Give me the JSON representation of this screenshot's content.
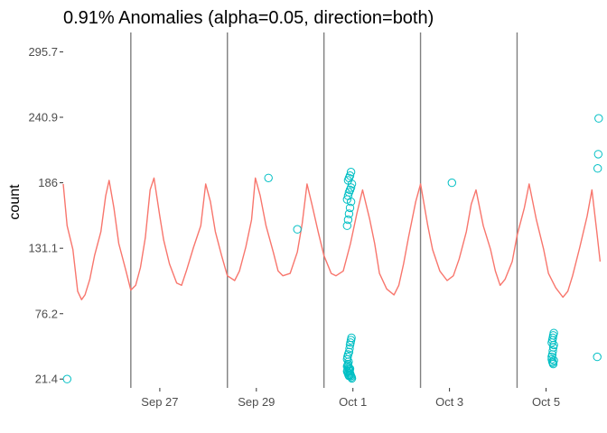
{
  "chart_data": {
    "type": "line",
    "title": "0.91% Anomalies (alpha=0.05, direction=both)",
    "xlabel": "",
    "ylabel": "count",
    "ylim": [
      14,
      312
    ],
    "y_ticks": [
      21.4,
      76.2,
      131.1,
      186,
      240.9,
      295.7
    ],
    "x_unit": "days since Sep 25 00:00",
    "xlim": [
      0,
      11.15
    ],
    "x_ticks": [
      {
        "label": "Sep 27",
        "x": 2
      },
      {
        "label": "Sep 29",
        "x": 4
      },
      {
        "label": "Oct  1",
        "x": 6
      },
      {
        "label": "Oct  3",
        "x": 8
      },
      {
        "label": "Oct  5",
        "x": 10
      }
    ],
    "vertical_lines": [
      1.4,
      3.4,
      5.4,
      7.4,
      9.4
    ],
    "grid": false,
    "series": [
      {
        "name": "count",
        "color": "#f8766d",
        "x": [
          0.0,
          0.08,
          0.2,
          0.3,
          0.38,
          0.45,
          0.55,
          0.65,
          0.78,
          0.88,
          0.95,
          1.05,
          1.15,
          1.3,
          1.4,
          1.5,
          1.6,
          1.7,
          1.8,
          1.88,
          2.0,
          2.08,
          2.2,
          2.35,
          2.45,
          2.55,
          2.7,
          2.85,
          2.95,
          3.05,
          3.15,
          3.28,
          3.4,
          3.55,
          3.65,
          3.78,
          3.9,
          3.98,
          4.08,
          4.2,
          4.35,
          4.45,
          4.55,
          4.7,
          4.85,
          4.95,
          5.05,
          5.15,
          5.28,
          5.4,
          5.55,
          5.65,
          5.8,
          5.95,
          6.08,
          6.2,
          6.35,
          6.45,
          6.55,
          6.7,
          6.85,
          6.95,
          7.05,
          7.15,
          7.3,
          7.4,
          7.55,
          7.65,
          7.8,
          7.95,
          8.08,
          8.2,
          8.35,
          8.45,
          8.55,
          8.7,
          8.85,
          8.95,
          9.05,
          9.15,
          9.3,
          9.4,
          9.55,
          9.65,
          9.8,
          9.95,
          10.05,
          10.2,
          10.35,
          10.45,
          10.55,
          10.7,
          10.85,
          10.95,
          11.05,
          11.12
        ],
        "y": [
          185,
          150,
          130,
          95,
          88,
          92,
          105,
          125,
          145,
          175,
          188,
          165,
          135,
          112,
          96,
          100,
          115,
          140,
          180,
          190,
          158,
          138,
          118,
          102,
          100,
          112,
          132,
          150,
          185,
          170,
          145,
          125,
          108,
          104,
          112,
          132,
          155,
          190,
          175,
          150,
          128,
          112,
          108,
          110,
          128,
          152,
          185,
          168,
          145,
          125,
          110,
          108,
          112,
          135,
          160,
          180,
          155,
          135,
          110,
          97,
          92,
          100,
          118,
          140,
          170,
          185,
          150,
          130,
          112,
          104,
          108,
          122,
          145,
          168,
          180,
          150,
          130,
          112,
          100,
          105,
          120,
          142,
          165,
          185,
          155,
          130,
          110,
          98,
          90,
          95,
          108,
          132,
          158,
          180,
          145,
          120
        ]
      }
    ],
    "anomalies": {
      "color": "#00bfc4",
      "x": [
        0.08,
        4.25,
        4.85,
        5.88,
        5.89,
        5.9,
        5.91,
        5.92,
        5.93,
        5.94,
        5.88,
        5.89,
        5.9,
        5.91,
        5.92,
        5.93,
        5.94,
        5.95,
        5.96,
        5.97,
        5.98,
        5.88,
        5.89,
        5.9,
        5.91,
        5.92,
        5.93,
        5.94,
        5.95,
        5.96,
        5.97,
        5.88,
        5.9,
        5.92,
        5.94,
        5.96,
        5.88,
        5.9,
        5.92,
        5.94,
        5.96,
        5.98,
        5.9,
        5.92,
        5.94,
        5.96,
        8.05,
        10.12,
        10.13,
        10.14,
        10.15,
        10.16,
        10.12,
        10.13,
        10.14,
        10.15,
        10.16,
        10.12,
        10.13,
        10.14,
        10.15,
        10.16,
        11.06,
        11.07,
        11.08,
        11.09
      ],
      "y": [
        21.4,
        190,
        147,
        28,
        27,
        26,
        25,
        24,
        29,
        30,
        32,
        33,
        34,
        31,
        30,
        28,
        26,
        25,
        24,
        23,
        22,
        38,
        40,
        42,
        36,
        44,
        47,
        50,
        52,
        54,
        56,
        150,
        155,
        160,
        165,
        170,
        172,
        175,
        178,
        180,
        182,
        185,
        188,
        190,
        192,
        195,
        186,
        40,
        42,
        45,
        48,
        50,
        52,
        54,
        56,
        58,
        60,
        38,
        36,
        35,
        34,
        37,
        40,
        198,
        210,
        240
      ]
    }
  }
}
